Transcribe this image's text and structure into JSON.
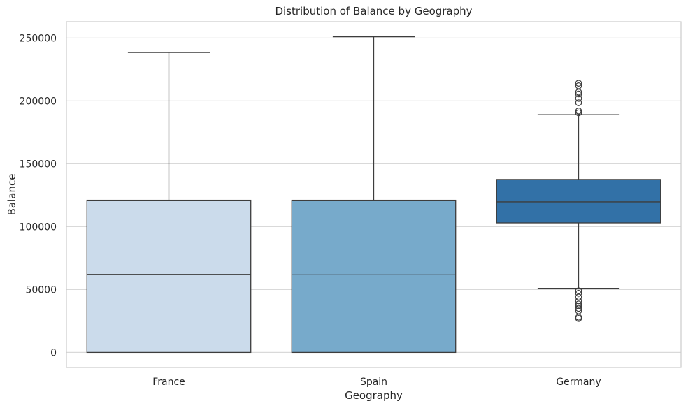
{
  "chart_data": {
    "type": "box",
    "title": "Distribution of Balance by Geography",
    "xlabel": "Geography",
    "ylabel": "Balance",
    "ylim": [
      -12000,
      263000
    ],
    "yticks": [
      0,
      50000,
      100000,
      150000,
      200000,
      250000
    ],
    "ytick_labels": [
      "0",
      "50000",
      "100000",
      "150000",
      "200000",
      "250000"
    ],
    "grid": "horizontal",
    "categories": [
      "France",
      "Spain",
      "Germany"
    ],
    "series": [
      {
        "category": "France",
        "color": "#cbdbeb",
        "whisker_low": 0,
        "q1": 0,
        "median": 62000,
        "q3": 121000,
        "whisker_high": 238500,
        "outliers": []
      },
      {
        "category": "Spain",
        "color": "#77aacb",
        "whisker_low": 0,
        "q1": 0,
        "median": 61700,
        "q3": 121000,
        "whisker_high": 251000,
        "outliers": []
      },
      {
        "category": "Germany",
        "color": "#3271a7",
        "whisker_low": 51000,
        "q1": 103000,
        "median": 119700,
        "q3": 137500,
        "whisker_high": 189000,
        "outliers": [
          190500,
          192000,
          198500,
          202000,
          205500,
          207000,
          212000,
          214000,
          49000,
          47000,
          44000,
          41000,
          38500,
          37000,
          35000,
          33000,
          28000,
          27000
        ]
      }
    ]
  }
}
